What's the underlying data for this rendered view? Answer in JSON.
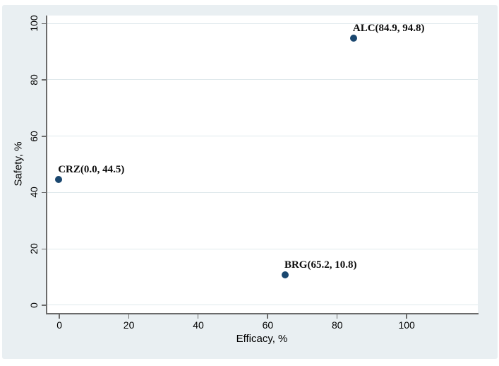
{
  "figure": {
    "canvas_bg": "#ffffff",
    "graph_region_bg": "#e9eff2",
    "plot_bg": "#ffffff",
    "gridline_color": "#dfe9ec",
    "axis_color": "#6b6b6b",
    "text_color": "#000000",
    "marker_color": "#1a476f"
  },
  "chart_data": {
    "type": "scatter",
    "title": "",
    "xlabel": "Efficacy, %",
    "ylabel": "Safety, %",
    "xlim": [
      -3.5,
      120.7
    ],
    "ylim": [
      -2.8,
      102.8
    ],
    "x_ticks": [
      0,
      20,
      40,
      60,
      80,
      100
    ],
    "y_ticks": [
      0,
      20,
      40,
      60,
      80,
      100
    ],
    "grid": "horizontal-only",
    "legend": "none",
    "points": [
      {
        "name": "ALC",
        "x": 84.9,
        "y": 94.8,
        "label": "ALC(84.9, 94.8)"
      },
      {
        "name": "CRZ",
        "x": 0.0,
        "y": 44.5,
        "label": "CRZ(0.0, 44.5)"
      },
      {
        "name": "BRG",
        "x": 65.2,
        "y": 10.8,
        "label": "BRG(65.2, 10.8)"
      }
    ]
  }
}
